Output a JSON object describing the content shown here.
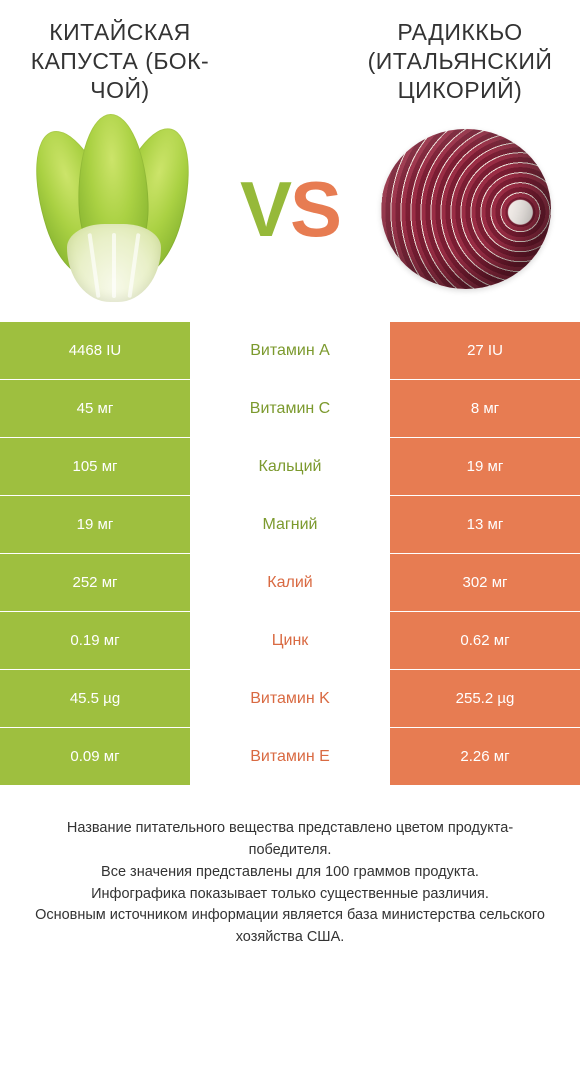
{
  "colors": {
    "left": "#9ebf3f",
    "right": "#e77c52",
    "left_text": "#7c9a2e",
    "right_text": "#d96a42"
  },
  "left": {
    "title": "КИТАЙСКАЯ КАПУСТА (БОК-ЧОЙ)"
  },
  "right": {
    "title": "РАДИККЬО (ИТАЛЬЯНСКИЙ ЦИКОРИЙ)"
  },
  "vs": {
    "v": "V",
    "s": "S"
  },
  "rows": [
    {
      "name": "Витамин A",
      "left": "4468 IU",
      "right": "27 IU",
      "winner": "left"
    },
    {
      "name": "Витамин C",
      "left": "45 мг",
      "right": "8 мг",
      "winner": "left"
    },
    {
      "name": "Кальций",
      "left": "105 мг",
      "right": "19 мг",
      "winner": "left"
    },
    {
      "name": "Магний",
      "left": "19 мг",
      "right": "13 мг",
      "winner": "left"
    },
    {
      "name": "Калий",
      "left": "252 мг",
      "right": "302 мг",
      "winner": "right"
    },
    {
      "name": "Цинк",
      "left": "0.19 мг",
      "right": "0.62 мг",
      "winner": "right"
    },
    {
      "name": "Витамин K",
      "left": "45.5 µg",
      "right": "255.2 µg",
      "winner": "right"
    },
    {
      "name": "Витамин E",
      "left": "0.09 мг",
      "right": "2.26 мг",
      "winner": "right"
    }
  ],
  "footer": "Название питательного вещества представлено цветом продукта-победителя.\nВсе значения представлены для 100 граммов продукта.\nИнфографика показывает только существенные различия.\nОсновным источником информации является база министерства сельского хозяйства США."
}
